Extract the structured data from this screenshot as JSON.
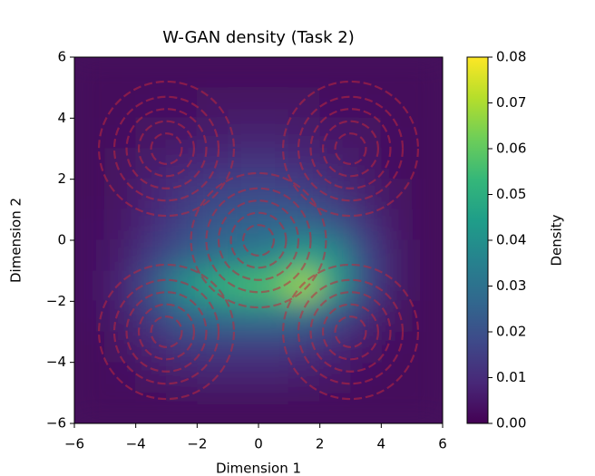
{
  "chart_data": {
    "type": "heatmap",
    "title": "W-GAN density (Task 2)",
    "x_label": "Dimension 1",
    "y_label": "Dimension 2",
    "colorbar_label": "Density",
    "xlim": [
      -6,
      6
    ],
    "ylim": [
      -6,
      6
    ],
    "xticks": [
      {
        "value": -6,
        "label": "−6"
      },
      {
        "value": -4,
        "label": "−4"
      },
      {
        "value": -2,
        "label": "−2"
      },
      0,
      2,
      4,
      6
    ],
    "yticks": [
      {
        "value": -6,
        "label": "−6"
      },
      {
        "value": -4,
        "label": "−4"
      },
      {
        "value": -2,
        "label": "−2"
      },
      0,
      2,
      4,
      6
    ],
    "clim": [
      0,
      0.08
    ],
    "cticks": [
      {
        "value": 0,
        "label": "0.00"
      },
      0.01,
      0.02,
      0.03,
      0.04,
      0.05,
      0.06,
      0.07,
      0.08
    ],
    "colormap": [
      "#440154",
      "#482878",
      "#3e4989",
      "#31688e",
      "#26828e",
      "#1f9e89",
      "#35b779",
      "#6ece58",
      "#b5de2b",
      "#fde725"
    ],
    "x": [
      -5.5,
      -4.5,
      -3.5,
      -2.5,
      -1.5,
      -0.5,
      0.5,
      1.5,
      2.5,
      3.5,
      4.5,
      5.5
    ],
    "y": [
      5.5,
      4.5,
      3.5,
      2.5,
      1.5,
      0.5,
      -0.5,
      -1.5,
      -2.5,
      -3.5,
      -4.5,
      -5.5
    ],
    "z": [
      [
        0.002,
        0.002,
        0.002,
        0.002,
        0.002,
        0.002,
        0.002,
        0.002,
        0.002,
        0.002,
        0.002,
        0.002
      ],
      [
        0.002,
        0.002,
        0.003,
        0.003,
        0.004,
        0.004,
        0.004,
        0.004,
        0.003,
        0.003,
        0.002,
        0.002
      ],
      [
        0.002,
        0.003,
        0.004,
        0.005,
        0.006,
        0.007,
        0.007,
        0.006,
        0.005,
        0.004,
        0.003,
        0.002
      ],
      [
        0.002,
        0.004,
        0.006,
        0.008,
        0.01,
        0.012,
        0.012,
        0.01,
        0.007,
        0.005,
        0.003,
        0.002
      ],
      [
        0.002,
        0.004,
        0.008,
        0.012,
        0.016,
        0.018,
        0.018,
        0.016,
        0.012,
        0.007,
        0.004,
        0.002
      ],
      [
        0.003,
        0.005,
        0.01,
        0.016,
        0.022,
        0.025,
        0.026,
        0.026,
        0.022,
        0.012,
        0.005,
        0.002
      ],
      [
        0.003,
        0.006,
        0.014,
        0.022,
        0.028,
        0.032,
        0.036,
        0.045,
        0.04,
        0.018,
        0.006,
        0.002
      ],
      [
        0.003,
        0.008,
        0.02,
        0.04,
        0.05,
        0.055,
        0.058,
        0.07,
        0.045,
        0.018,
        0.006,
        0.002
      ],
      [
        0.003,
        0.006,
        0.014,
        0.024,
        0.028,
        0.03,
        0.03,
        0.028,
        0.02,
        0.01,
        0.004,
        0.002
      ],
      [
        0.002,
        0.004,
        0.008,
        0.012,
        0.014,
        0.014,
        0.014,
        0.012,
        0.009,
        0.005,
        0.003,
        0.002
      ],
      [
        0.002,
        0.003,
        0.004,
        0.006,
        0.007,
        0.007,
        0.007,
        0.006,
        0.005,
        0.003,
        0.002,
        0.002
      ],
      [
        0.002,
        0.002,
        0.002,
        0.002,
        0.002,
        0.002,
        0.002,
        0.002,
        0.002,
        0.002,
        0.002,
        0.002
      ]
    ],
    "contours": {
      "color": "#c0283c",
      "x": [
        -3,
        3,
        0,
        -3,
        3
      ],
      "y": [
        3,
        3,
        0,
        -3,
        -3
      ],
      "radii": [
        0.5,
        0.9,
        1.3,
        1.7,
        2.2
      ]
    }
  }
}
